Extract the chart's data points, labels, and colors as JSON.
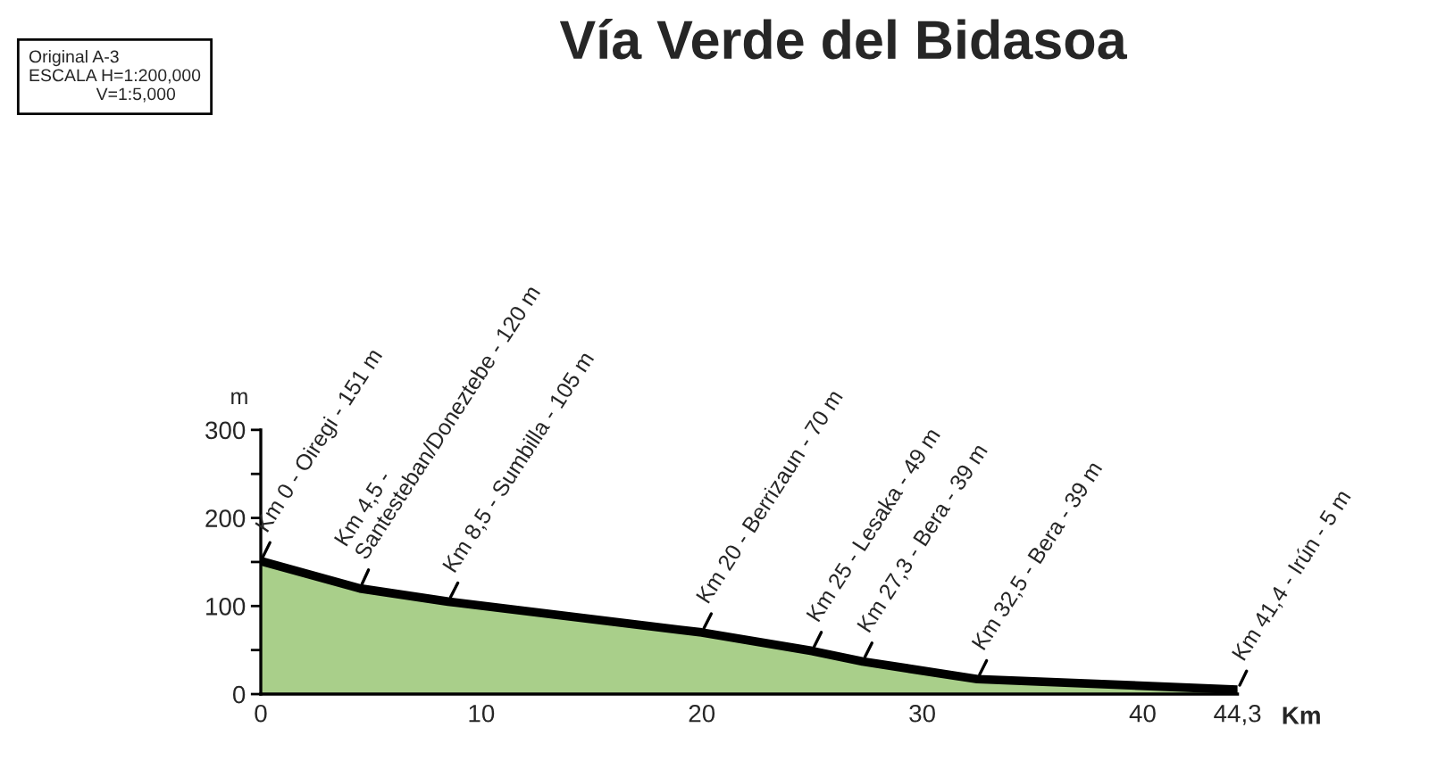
{
  "chart_data": {
    "type": "area",
    "title": "Vía Verde del Bidasoa",
    "x": [
      0,
      4.5,
      8.5,
      20,
      25,
      27.3,
      32.5,
      44.3
    ],
    "series": [
      {
        "color": "#a9cf8a",
        "values": [
          151,
          120,
          105,
          70,
          49,
          37,
          17,
          5
        ]
      }
    ],
    "xlabel": "Km",
    "ylabel": "m",
    "xlim": [
      0,
      44.3
    ],
    "xticks": [
      0,
      10,
      20,
      30,
      40,
      {
        "value": 44.3,
        "label": "44,3"
      }
    ],
    "ylim": [
      0,
      300
    ],
    "yticks": [
      0,
      {
        "value": 50,
        "label": null
      },
      100,
      {
        "value": 150,
        "label": null
      },
      200,
      {
        "value": 250,
        "label": null
      },
      300
    ],
    "grid": false,
    "annotations": [
      "Original A-3\nESCALA H=1:200,000\n              V=1:5,000",
      {
        "text": "Km 0 - Oiregi - 151 m",
        "x": 0,
        "y": 151
      },
      {
        "text": "Km 4,5 -\nSantesteban/Doneztebe - 120 m",
        "x": 4.5,
        "y": 120
      },
      {
        "text": "Km 8,5 - Sumbilla - 105 m",
        "x": 8.5,
        "y": 105
      },
      {
        "text": "Km 20 - Berrizaun - 70 m",
        "x": 20,
        "y": 70
      },
      {
        "text": "Km 25 - Lesaka - 49 m",
        "x": 25,
        "y": 49
      },
      {
        "text": "Km 27,3 - Bera - 39 m",
        "x": 27.3,
        "y": 37
      },
      {
        "text": "Km 32,5 - Bera - 39 m",
        "x": 32.5,
        "y": 17
      },
      {
        "text": "Km 41,4 - Irún - 5 m",
        "x": 44.3,
        "y": 5
      }
    ]
  }
}
